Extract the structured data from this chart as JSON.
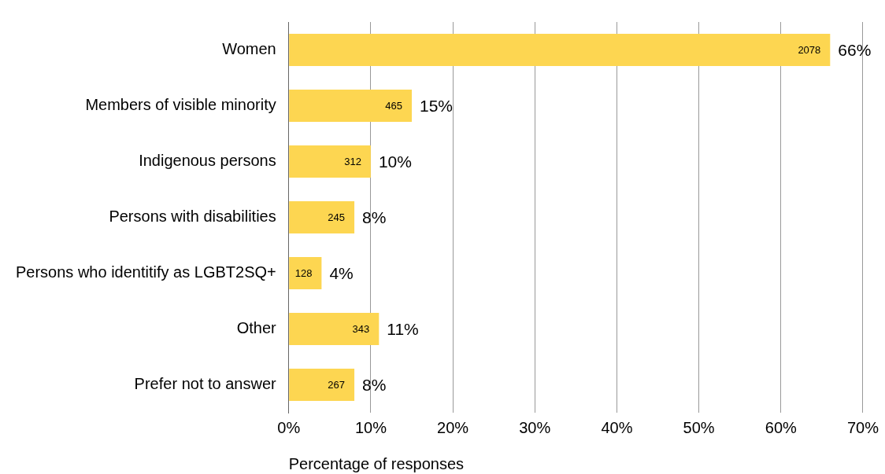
{
  "chart_data": {
    "type": "bar",
    "orientation": "horizontal",
    "xlabel": "Percentage of responses",
    "categories": [
      "Women",
      "Members of visible minority",
      "Indigenous persons",
      "Persons with disabilities",
      "Persons who identitify as LGBT2SQ+",
      "Other",
      "Prefer not to answer"
    ],
    "values": [
      66,
      15,
      10,
      8,
      4,
      11,
      8
    ],
    "value_labels": [
      "66%",
      "15%",
      "10%",
      "8%",
      "4%",
      "11%",
      "8%"
    ],
    "color": "#fdd651",
    "xlim": [
      0,
      70
    ],
    "xticks": [
      {
        "value": 0,
        "label": "0%"
      },
      {
        "value": 10,
        "label": "10%"
      },
      {
        "value": 20,
        "label": "20%"
      },
      {
        "value": 30,
        "label": "30%"
      },
      {
        "value": 40,
        "label": "40%"
      },
      {
        "value": 50,
        "label": "50%"
      },
      {
        "value": 60,
        "label": "60%"
      },
      {
        "value": 70,
        "label": "70%"
      }
    ],
    "grid": "x",
    "legend": false,
    "annotations": [
      {
        "text": "2078",
        "x": 66,
        "y": "Women"
      },
      {
        "text": "465",
        "x": 15,
        "y": "Members of visible minority"
      },
      {
        "text": "312",
        "x": 10,
        "y": "Indigenous persons"
      },
      {
        "text": "245",
        "x": 8,
        "y": "Persons with disabilities"
      },
      {
        "text": "128",
        "x": 4,
        "y": "Persons who identitify as LGBT2SQ+"
      },
      {
        "text": "343",
        "x": 11,
        "y": "Other"
      },
      {
        "text": "267",
        "x": 8,
        "y": "Prefer not to answer"
      }
    ]
  }
}
